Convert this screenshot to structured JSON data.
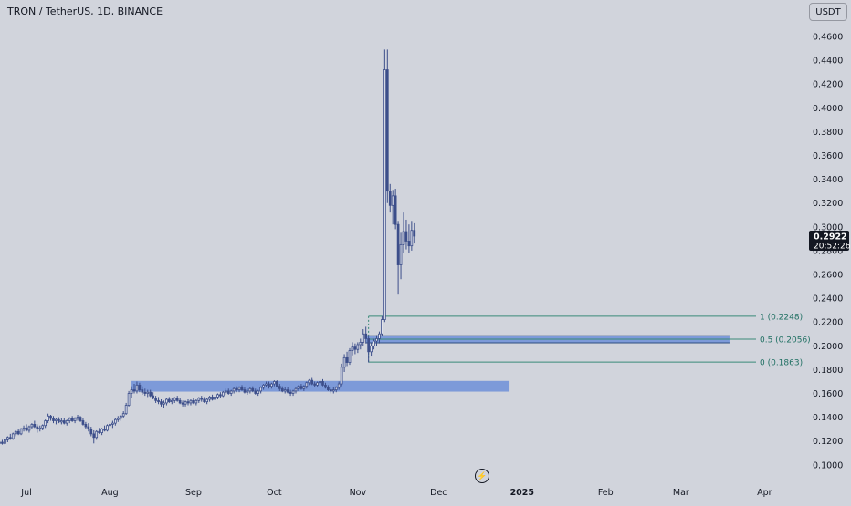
{
  "header": {
    "symbol": "TRON / TetherUS, 1D, BINANCE",
    "currency": "USDT"
  },
  "toolbar": {
    "lightning_icon": "lightning-icon",
    "lightning_glyph": "⚡"
  },
  "price_label": {
    "price": "0.2922",
    "countdown": "20:52:26"
  },
  "colors": {
    "background": "#d1d4dc",
    "candle": "#3c4e8a",
    "zone": "#6e8fd8",
    "fib_line": "#3a8a78",
    "fib_text": "#1f6f62",
    "axis_text": "#131722",
    "price_tag": "#131722"
  },
  "chart_data": {
    "type": "candlestick",
    "title": "TRON / TetherUS, 1D, BINANCE",
    "ylim": [
      0.08,
      0.47
    ],
    "y_ticks": [
      0.46,
      0.44,
      0.42,
      0.4,
      0.38,
      0.36,
      0.34,
      0.32,
      0.3,
      0.28,
      0.26,
      0.24,
      0.22,
      0.2,
      0.18,
      0.16,
      0.14,
      0.12,
      0.1
    ],
    "y_tick_labels": [
      "0.4600",
      "0.4400",
      "0.4200",
      "0.4000",
      "0.3800",
      "0.3600",
      "0.3400",
      "0.3200",
      "0.3000",
      "0.2800",
      "0.2600",
      "0.2400",
      "0.2200",
      "0.2000",
      "0.1800",
      "0.1600",
      "0.1400",
      "0.1200",
      "0.1000"
    ],
    "x_labels": [
      {
        "label": "Jul",
        "day": 0
      },
      {
        "label": "Aug",
        "day": 31
      },
      {
        "label": "Sep",
        "day": 62
      },
      {
        "label": "Oct",
        "day": 92
      },
      {
        "label": "Nov",
        "day": 123
      },
      {
        "label": "Dec",
        "day": 153
      },
      {
        "label": "2025",
        "day": 184
      },
      {
        "label": "Feb",
        "day": 215
      },
      {
        "label": "Mar",
        "day": 243
      },
      {
        "label": "Apr",
        "day": 274
      }
    ],
    "grid": false,
    "last_price": 0.2922,
    "candles": [
      [
        -10,
        0.118,
        0.12,
        0.116,
        0.119
      ],
      [
        -9,
        0.119,
        0.121,
        0.117,
        0.118
      ],
      [
        -8,
        0.118,
        0.122,
        0.117,
        0.121
      ],
      [
        -7,
        0.121,
        0.124,
        0.119,
        0.123
      ],
      [
        -6,
        0.123,
        0.126,
        0.121,
        0.122
      ],
      [
        -5,
        0.122,
        0.127,
        0.121,
        0.126
      ],
      [
        -4,
        0.126,
        0.129,
        0.124,
        0.128
      ],
      [
        -3,
        0.128,
        0.13,
        0.125,
        0.126
      ],
      [
        -2,
        0.126,
        0.131,
        0.125,
        0.13
      ],
      [
        -1,
        0.13,
        0.133,
        0.128,
        0.131
      ],
      [
        0,
        0.131,
        0.134,
        0.128,
        0.129
      ],
      [
        1,
        0.129,
        0.133,
        0.127,
        0.132
      ],
      [
        2,
        0.132,
        0.135,
        0.13,
        0.134
      ],
      [
        3,
        0.134,
        0.137,
        0.131,
        0.132
      ],
      [
        4,
        0.132,
        0.134,
        0.127,
        0.13
      ],
      [
        5,
        0.13,
        0.133,
        0.128,
        0.131
      ],
      [
        6,
        0.131,
        0.134,
        0.129,
        0.133
      ],
      [
        7,
        0.133,
        0.138,
        0.131,
        0.137
      ],
      [
        8,
        0.137,
        0.143,
        0.135,
        0.141
      ],
      [
        9,
        0.141,
        0.142,
        0.137,
        0.139
      ],
      [
        10,
        0.139,
        0.141,
        0.135,
        0.137
      ],
      [
        11,
        0.137,
        0.139,
        0.134,
        0.138
      ],
      [
        12,
        0.138,
        0.14,
        0.135,
        0.136
      ],
      [
        13,
        0.136,
        0.139,
        0.134,
        0.137
      ],
      [
        14,
        0.137,
        0.139,
        0.134,
        0.135
      ],
      [
        15,
        0.135,
        0.138,
        0.133,
        0.137
      ],
      [
        16,
        0.137,
        0.14,
        0.135,
        0.139
      ],
      [
        17,
        0.139,
        0.141,
        0.136,
        0.137
      ],
      [
        18,
        0.137,
        0.14,
        0.135,
        0.139
      ],
      [
        19,
        0.139,
        0.142,
        0.137,
        0.14
      ],
      [
        20,
        0.14,
        0.141,
        0.136,
        0.137
      ],
      [
        21,
        0.137,
        0.139,
        0.133,
        0.134
      ],
      [
        22,
        0.134,
        0.136,
        0.13,
        0.132
      ],
      [
        23,
        0.132,
        0.135,
        0.128,
        0.13
      ],
      [
        24,
        0.13,
        0.132,
        0.124,
        0.126
      ],
      [
        25,
        0.126,
        0.129,
        0.118,
        0.123
      ],
      [
        26,
        0.123,
        0.129,
        0.121,
        0.128
      ],
      [
        27,
        0.128,
        0.131,
        0.126,
        0.127
      ],
      [
        28,
        0.127,
        0.131,
        0.125,
        0.13
      ],
      [
        29,
        0.13,
        0.133,
        0.128,
        0.129
      ],
      [
        30,
        0.129,
        0.134,
        0.128,
        0.133
      ],
      [
        31,
        0.133,
        0.136,
        0.131,
        0.134
      ],
      [
        32,
        0.134,
        0.137,
        0.131,
        0.135
      ],
      [
        33,
        0.135,
        0.139,
        0.133,
        0.138
      ],
      [
        34,
        0.138,
        0.141,
        0.136,
        0.139
      ],
      [
        35,
        0.139,
        0.142,
        0.137,
        0.141
      ],
      [
        36,
        0.141,
        0.145,
        0.139,
        0.143
      ],
      [
        37,
        0.143,
        0.152,
        0.142,
        0.15
      ],
      [
        38,
        0.15,
        0.162,
        0.149,
        0.16
      ],
      [
        39,
        0.16,
        0.166,
        0.156,
        0.163
      ],
      [
        40,
        0.163,
        0.168,
        0.16,
        0.162
      ],
      [
        41,
        0.162,
        0.17,
        0.16,
        0.167
      ],
      [
        42,
        0.167,
        0.169,
        0.161,
        0.163
      ],
      [
        43,
        0.163,
        0.166,
        0.159,
        0.161
      ],
      [
        44,
        0.161,
        0.164,
        0.158,
        0.16
      ],
      [
        45,
        0.16,
        0.163,
        0.157,
        0.161
      ],
      [
        46,
        0.161,
        0.163,
        0.157,
        0.158
      ],
      [
        47,
        0.158,
        0.161,
        0.155,
        0.156
      ],
      [
        48,
        0.156,
        0.158,
        0.152,
        0.154
      ],
      [
        49,
        0.154,
        0.157,
        0.151,
        0.153
      ],
      [
        50,
        0.153,
        0.155,
        0.149,
        0.151
      ],
      [
        51,
        0.151,
        0.154,
        0.148,
        0.152
      ],
      [
        52,
        0.152,
        0.156,
        0.15,
        0.155
      ],
      [
        53,
        0.155,
        0.157,
        0.152,
        0.153
      ],
      [
        54,
        0.153,
        0.156,
        0.151,
        0.154
      ],
      [
        55,
        0.154,
        0.157,
        0.152,
        0.156
      ],
      [
        56,
        0.156,
        0.158,
        0.153,
        0.154
      ],
      [
        57,
        0.154,
        0.156,
        0.151,
        0.152
      ],
      [
        58,
        0.152,
        0.154,
        0.149,
        0.151
      ],
      [
        59,
        0.151,
        0.154,
        0.149,
        0.153
      ],
      [
        60,
        0.153,
        0.155,
        0.15,
        0.152
      ],
      [
        61,
        0.152,
        0.155,
        0.15,
        0.154
      ],
      [
        62,
        0.154,
        0.156,
        0.151,
        0.152
      ],
      [
        63,
        0.152,
        0.155,
        0.15,
        0.154
      ],
      [
        64,
        0.154,
        0.157,
        0.152,
        0.156
      ],
      [
        65,
        0.156,
        0.158,
        0.153,
        0.155
      ],
      [
        66,
        0.155,
        0.157,
        0.152,
        0.153
      ],
      [
        67,
        0.153,
        0.156,
        0.151,
        0.155
      ],
      [
        68,
        0.155,
        0.158,
        0.153,
        0.157
      ],
      [
        69,
        0.157,
        0.159,
        0.154,
        0.155
      ],
      [
        70,
        0.155,
        0.158,
        0.153,
        0.157
      ],
      [
        71,
        0.157,
        0.16,
        0.155,
        0.159
      ],
      [
        72,
        0.159,
        0.161,
        0.156,
        0.158
      ],
      [
        73,
        0.158,
        0.162,
        0.157,
        0.161
      ],
      [
        74,
        0.161,
        0.164,
        0.159,
        0.162
      ],
      [
        75,
        0.162,
        0.164,
        0.159,
        0.16
      ],
      [
        76,
        0.16,
        0.163,
        0.158,
        0.162
      ],
      [
        77,
        0.162,
        0.165,
        0.16,
        0.164
      ],
      [
        78,
        0.164,
        0.166,
        0.161,
        0.163
      ],
      [
        79,
        0.163,
        0.166,
        0.161,
        0.165
      ],
      [
        80,
        0.165,
        0.167,
        0.162,
        0.163
      ],
      [
        81,
        0.163,
        0.165,
        0.16,
        0.161
      ],
      [
        82,
        0.161,
        0.164,
        0.159,
        0.162
      ],
      [
        83,
        0.162,
        0.165,
        0.16,
        0.164
      ],
      [
        84,
        0.164,
        0.166,
        0.161,
        0.162
      ],
      [
        85,
        0.162,
        0.164,
        0.159,
        0.16
      ],
      [
        86,
        0.16,
        0.163,
        0.158,
        0.162
      ],
      [
        87,
        0.162,
        0.166,
        0.16,
        0.165
      ],
      [
        88,
        0.165,
        0.168,
        0.163,
        0.167
      ],
      [
        89,
        0.167,
        0.17,
        0.165,
        0.168
      ],
      [
        90,
        0.168,
        0.17,
        0.164,
        0.166
      ],
      [
        91,
        0.166,
        0.169,
        0.164,
        0.168
      ],
      [
        92,
        0.168,
        0.171,
        0.166,
        0.17
      ],
      [
        93,
        0.17,
        0.171,
        0.165,
        0.166
      ],
      [
        94,
        0.166,
        0.168,
        0.162,
        0.164
      ],
      [
        95,
        0.164,
        0.166,
        0.161,
        0.162
      ],
      [
        96,
        0.162,
        0.165,
        0.16,
        0.163
      ],
      [
        97,
        0.163,
        0.165,
        0.16,
        0.161
      ],
      [
        98,
        0.161,
        0.163,
        0.158,
        0.16
      ],
      [
        99,
        0.16,
        0.163,
        0.158,
        0.162
      ],
      [
        100,
        0.162,
        0.165,
        0.16,
        0.164
      ],
      [
        101,
        0.164,
        0.167,
        0.162,
        0.166
      ],
      [
        102,
        0.166,
        0.168,
        0.163,
        0.164
      ],
      [
        103,
        0.164,
        0.167,
        0.162,
        0.166
      ],
      [
        104,
        0.166,
        0.17,
        0.164,
        0.169
      ],
      [
        105,
        0.169,
        0.172,
        0.167,
        0.171
      ],
      [
        106,
        0.171,
        0.173,
        0.167,
        0.168
      ],
      [
        107,
        0.168,
        0.17,
        0.165,
        0.167
      ],
      [
        108,
        0.167,
        0.17,
        0.165,
        0.169
      ],
      [
        109,
        0.169,
        0.172,
        0.167,
        0.17
      ],
      [
        110,
        0.17,
        0.172,
        0.166,
        0.167
      ],
      [
        111,
        0.167,
        0.169,
        0.164,
        0.165
      ],
      [
        112,
        0.165,
        0.167,
        0.162,
        0.163
      ],
      [
        113,
        0.163,
        0.165,
        0.16,
        0.162
      ],
      [
        114,
        0.162,
        0.165,
        0.16,
        0.163
      ],
      [
        115,
        0.163,
        0.166,
        0.161,
        0.165
      ],
      [
        116,
        0.165,
        0.17,
        0.163,
        0.168
      ],
      [
        117,
        0.168,
        0.185,
        0.166,
        0.182
      ],
      [
        118,
        0.182,
        0.193,
        0.178,
        0.19
      ],
      [
        119,
        0.19,
        0.195,
        0.183,
        0.186
      ],
      [
        120,
        0.186,
        0.198,
        0.184,
        0.196
      ],
      [
        121,
        0.196,
        0.203,
        0.192,
        0.199
      ],
      [
        122,
        0.199,
        0.202,
        0.193,
        0.197
      ],
      [
        123,
        0.197,
        0.203,
        0.194,
        0.201
      ],
      [
        124,
        0.201,
        0.206,
        0.197,
        0.203
      ],
      [
        125,
        0.203,
        0.214,
        0.2,
        0.21
      ],
      [
        126,
        0.21,
        0.216,
        0.202,
        0.206
      ],
      [
        127,
        0.206,
        0.209,
        0.186,
        0.195
      ],
      [
        128,
        0.195,
        0.203,
        0.191,
        0.2
      ],
      [
        129,
        0.2,
        0.206,
        0.197,
        0.204
      ],
      [
        130,
        0.204,
        0.209,
        0.2,
        0.206
      ],
      [
        131,
        0.206,
        0.212,
        0.202,
        0.21
      ],
      [
        132,
        0.21,
        0.225,
        0.208,
        0.222
      ],
      [
        133,
        0.222,
        0.449,
        0.22,
        0.432
      ],
      [
        134,
        0.432,
        0.449,
        0.32,
        0.33
      ],
      [
        135,
        0.33,
        0.336,
        0.312,
        0.318
      ],
      [
        136,
        0.318,
        0.331,
        0.302,
        0.326
      ],
      [
        137,
        0.326,
        0.332,
        0.298,
        0.302
      ],
      [
        138,
        0.302,
        0.305,
        0.243,
        0.268
      ],
      [
        139,
        0.268,
        0.295,
        0.256,
        0.285
      ],
      [
        140,
        0.285,
        0.312,
        0.278,
        0.296
      ],
      [
        141,
        0.296,
        0.306,
        0.281,
        0.288
      ],
      [
        142,
        0.288,
        0.302,
        0.278,
        0.284
      ],
      [
        143,
        0.284,
        0.305,
        0.28,
        0.297
      ],
      [
        144,
        0.297,
        0.303,
        0.286,
        0.2922
      ]
    ],
    "zones": [
      {
        "name": "support-zone",
        "x0": 39,
        "x1": 179,
        "y0": 0.1615,
        "y1": 0.1705
      },
      {
        "name": "resistance-zone",
        "x0": 126,
        "x1": 261,
        "y0": 0.2025,
        "y1": 0.2085
      }
    ],
    "fib_levels": [
      {
        "label": "1 (0.2248)",
        "value": 0.2248
      },
      {
        "label": "0.5 (0.2056)",
        "value": 0.2056
      },
      {
        "label": "0 (0.1863)",
        "value": 0.1863
      }
    ],
    "fib_x0": 127,
    "fib_x1": 261
  }
}
